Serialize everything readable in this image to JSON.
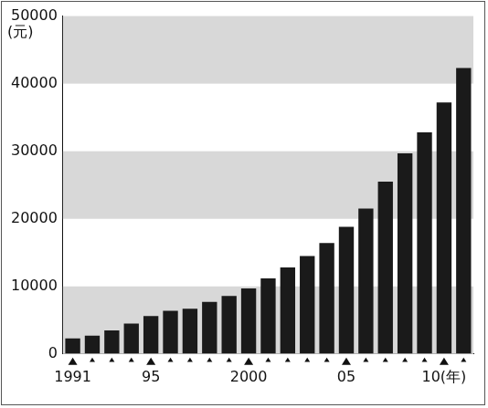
{
  "chart_data": {
    "type": "bar",
    "y_label": "(元)",
    "categories": [
      "1991",
      null,
      null,
      null,
      "95",
      null,
      null,
      null,
      null,
      "2000",
      null,
      null,
      null,
      null,
      "05",
      null,
      null,
      null,
      null,
      "10(年)",
      null
    ],
    "values": [
      2300,
      2700,
      3500,
      4500,
      5600,
      6400,
      6700,
      7700,
      8600,
      9700,
      11200,
      12800,
      14500,
      16400,
      18800,
      21500,
      25500,
      29700,
      32800,
      37200,
      42300
    ],
    "color": "#1a1a1a",
    "ylim": [
      0,
      50000
    ],
    "yticks": [
      0,
      10000,
      20000,
      30000,
      40000,
      50000
    ],
    "grid": true
  }
}
